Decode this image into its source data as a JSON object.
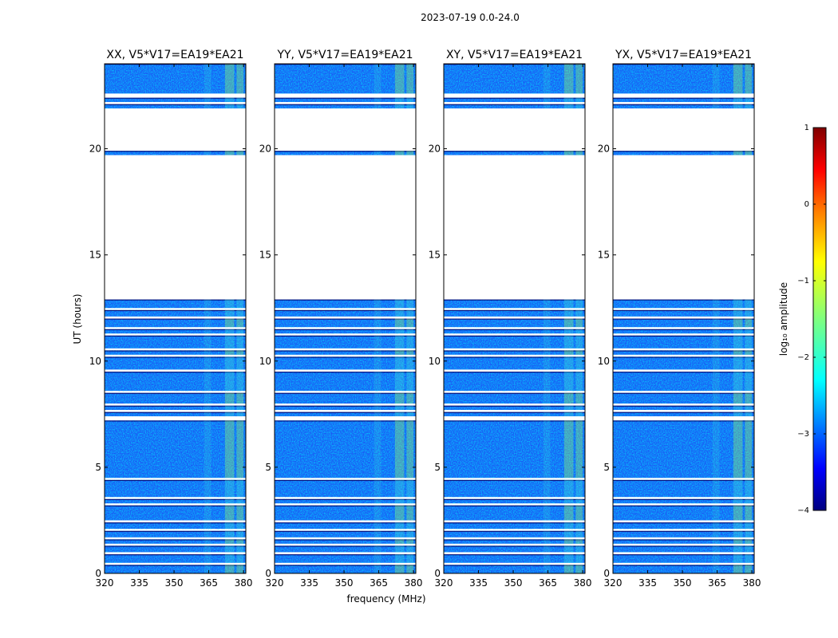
{
  "chart_data": {
    "type": "heatmap",
    "suptitle": "2023-07-19 0.0-24.0",
    "xlabel": "frequency (MHz)",
    "ylabel": "UT (hours)",
    "xlim": [
      320,
      381
    ],
    "ylim": [
      0,
      24
    ],
    "x_ticks": [
      320,
      335,
      350,
      365,
      380
    ],
    "x_tick_labels": [
      "320",
      "335",
      "350",
      "365",
      "380"
    ],
    "y_ticks": [
      0,
      5,
      10,
      15,
      20
    ],
    "y_tick_labels": [
      "0",
      "5",
      "10",
      "15",
      "20"
    ],
    "panels": [
      {
        "title": "XX, V5*V17=EA19*EA21",
        "pol": "XX"
      },
      {
        "title": "YY, V5*V17=EA19*EA21",
        "pol": "YY"
      },
      {
        "title": "XY, V5*V17=EA19*EA21",
        "pol": "XY"
      },
      {
        "title": "YX, V5*V17=EA19*EA21",
        "pol": "YX"
      }
    ],
    "data_intervals_hours": [
      [
        0.0,
        0.4
      ],
      [
        0.5,
        0.9
      ],
      [
        1.0,
        1.3
      ],
      [
        1.4,
        1.6
      ],
      [
        1.7,
        2.0
      ],
      [
        2.1,
        2.4
      ],
      [
        2.5,
        3.2
      ],
      [
        3.3,
        3.5
      ],
      [
        3.6,
        4.4
      ],
      [
        4.5,
        7.2
      ],
      [
        7.4,
        7.6
      ],
      [
        7.7,
        7.9
      ],
      [
        8.0,
        8.5
      ],
      [
        8.6,
        9.5
      ],
      [
        9.6,
        10.2
      ],
      [
        10.3,
        10.5
      ],
      [
        10.6,
        11.2
      ],
      [
        11.3,
        11.5
      ],
      [
        11.6,
        12.0
      ],
      [
        12.1,
        12.4
      ],
      [
        12.5,
        12.9
      ],
      [
        19.7,
        19.9
      ],
      [
        21.9,
        22.1
      ],
      [
        22.2,
        22.4
      ],
      [
        22.6,
        24.0
      ]
    ],
    "rfi_bands_mhz": [
      [
        363,
        366
      ],
      [
        372,
        376
      ],
      [
        377,
        380
      ]
    ],
    "colorbar": {
      "label": "log₁₀ amplitude",
      "ticks": [
        1,
        0,
        -1,
        -2,
        -3,
        -4
      ],
      "tick_labels": [
        "1",
        "0",
        "−1",
        "−2",
        "−3",
        "−4"
      ],
      "range": [
        -4,
        1
      ],
      "colormap": "jet"
    }
  },
  "colors": {
    "background_noise": "#1a5cf5",
    "colormap_stops": [
      "#00007f",
      "#0000ff",
      "#007fff",
      "#00ffff",
      "#7fff7f",
      "#ffff00",
      "#ff7f00",
      "#ff0000",
      "#7f0000"
    ]
  }
}
